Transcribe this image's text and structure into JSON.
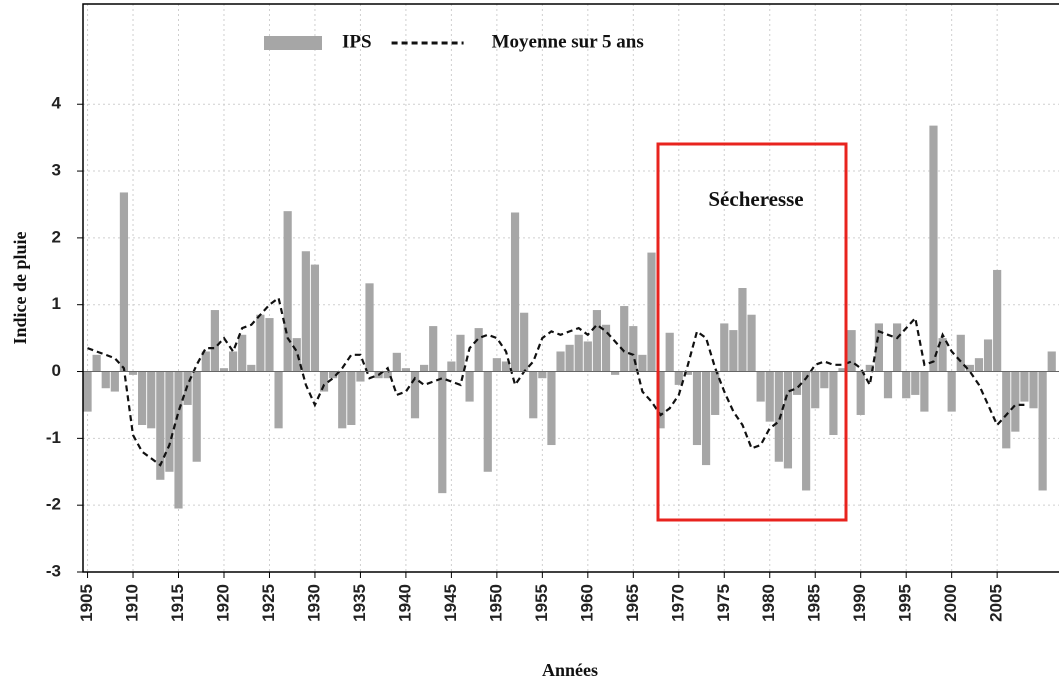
{
  "chart_data": {
    "type": "bar_line",
    "legend": "top",
    "y_label": "Indice de pluie",
    "x_label": "Années",
    "annotation": "Sécheresse",
    "x": [
      1905,
      1906,
      1907,
      1908,
      1909,
      1910,
      1911,
      1912,
      1913,
      1914,
      1915,
      1916,
      1917,
      1918,
      1919,
      1920,
      1921,
      1922,
      1923,
      1924,
      1925,
      1926,
      1927,
      1928,
      1929,
      1930,
      1931,
      1932,
      1933,
      1934,
      1935,
      1936,
      1937,
      1938,
      1939,
      1940,
      1941,
      1942,
      1943,
      1944,
      1945,
      1946,
      1947,
      1948,
      1949,
      1950,
      1951,
      1952,
      1953,
      1954,
      1955,
      1956,
      1957,
      1958,
      1959,
      1960,
      1961,
      1962,
      1963,
      1964,
      1965,
      1966,
      1967,
      1968,
      1969,
      1970,
      1971,
      1972,
      1973,
      1974,
      1975,
      1976,
      1977,
      1978,
      1979,
      1980,
      1981,
      1982,
      1983,
      1984,
      1985,
      1986,
      1987,
      1988,
      1989,
      1990,
      1991,
      1992,
      1993,
      1994,
      1995,
      1996,
      1997,
      1998,
      1999,
      2000,
      2001,
      2002,
      2003,
      2004,
      2005,
      2006,
      2007,
      2008,
      2009,
      2010,
      2011
    ],
    "series": [
      {
        "name": "IPS",
        "kind": "bar",
        "color": "#a6a6a6",
        "values": [
          -0.6,
          0.25,
          -0.25,
          -0.3,
          2.68,
          -0.05,
          -0.8,
          -0.85,
          -1.62,
          -1.5,
          -2.05,
          -0.5,
          -1.35,
          0.3,
          0.92,
          0.05,
          0.3,
          0.55,
          0.1,
          0.85,
          0.8,
          -0.85,
          2.4,
          0.5,
          1.8,
          1.6,
          -0.3,
          -0.1,
          -0.85,
          -0.8,
          -0.15,
          1.32,
          -0.1,
          -0.1,
          0.28,
          0.05,
          -0.7,
          0.1,
          0.68,
          -1.82,
          0.15,
          0.55,
          -0.45,
          0.65,
          -1.5,
          0.2,
          0.15,
          2.38,
          0.88,
          -0.7,
          -0.1,
          -1.1,
          0.3,
          0.4,
          0.55,
          0.45,
          0.92,
          0.7,
          -0.05,
          0.98,
          0.68,
          0.25,
          1.78,
          -0.85,
          0.58,
          -0.2,
          -0.05,
          -1.1,
          -1.4,
          -0.65,
          0.72,
          0.62,
          1.25,
          0.85,
          -0.45,
          -0.75,
          -1.35,
          -1.45,
          -0.35,
          -1.78,
          -0.55,
          -0.25,
          -0.95,
          0.05,
          0.62,
          -0.65,
          0.1,
          0.72,
          -0.4,
          0.72,
          -0.4,
          -0.35,
          -0.6,
          3.68,
          0.5,
          -0.6,
          0.55,
          0.1,
          0.2,
          0.48,
          1.52,
          -1.15,
          -0.9,
          -0.45,
          -0.55,
          -1.78,
          0.3
        ]
      },
      {
        "name": "Moyenne sur 5 ans",
        "kind": "line",
        "color": "#111111",
        "values": [
          0.35,
          0.3,
          0.25,
          0.2,
          0.05,
          -0.95,
          -1.2,
          -1.3,
          -1.4,
          -1.1,
          -0.6,
          -0.2,
          0.1,
          0.35,
          0.35,
          0.5,
          0.3,
          0.65,
          0.7,
          0.85,
          1.0,
          1.1,
          0.5,
          0.3,
          -0.2,
          -0.5,
          -0.2,
          -0.1,
          0.05,
          0.25,
          0.25,
          -0.1,
          -0.05,
          0.05,
          -0.35,
          -0.3,
          -0.1,
          -0.2,
          -0.15,
          -0.1,
          -0.15,
          -0.2,
          0.35,
          0.5,
          0.55,
          0.5,
          0.3,
          -0.2,
          0.0,
          0.15,
          0.5,
          0.6,
          0.55,
          0.6,
          0.65,
          0.55,
          0.7,
          0.6,
          0.45,
          0.3,
          0.25,
          -0.3,
          -0.45,
          -0.65,
          -0.55,
          -0.35,
          0.1,
          0.6,
          0.5,
          0.05,
          -0.3,
          -0.6,
          -0.8,
          -1.15,
          -1.1,
          -0.85,
          -0.75,
          -0.3,
          -0.25,
          -0.1,
          0.1,
          0.15,
          0.1,
          0.1,
          0.15,
          0.05,
          -0.2,
          0.6,
          0.55,
          0.5,
          0.65,
          0.8,
          0.1,
          0.15,
          0.55,
          0.3,
          0.15,
          0.0,
          -0.2,
          -0.5,
          -0.8,
          -0.65,
          -0.5,
          -0.5,
          null,
          null,
          null
        ]
      }
    ],
    "xlim": [
      1904.5,
      2011.8
    ],
    "xticks": [
      1905,
      1910,
      1915,
      1920,
      1925,
      1930,
      1935,
      1940,
      1945,
      1950,
      1955,
      1960,
      1965,
      1970,
      1975,
      1980,
      1985,
      1990,
      1995,
      2000,
      2005
    ],
    "ylim": [
      -3,
      5.5
    ],
    "yticks": [
      4,
      3,
      2,
      1,
      0,
      -1,
      -2,
      -3
    ],
    "grid": true
  }
}
